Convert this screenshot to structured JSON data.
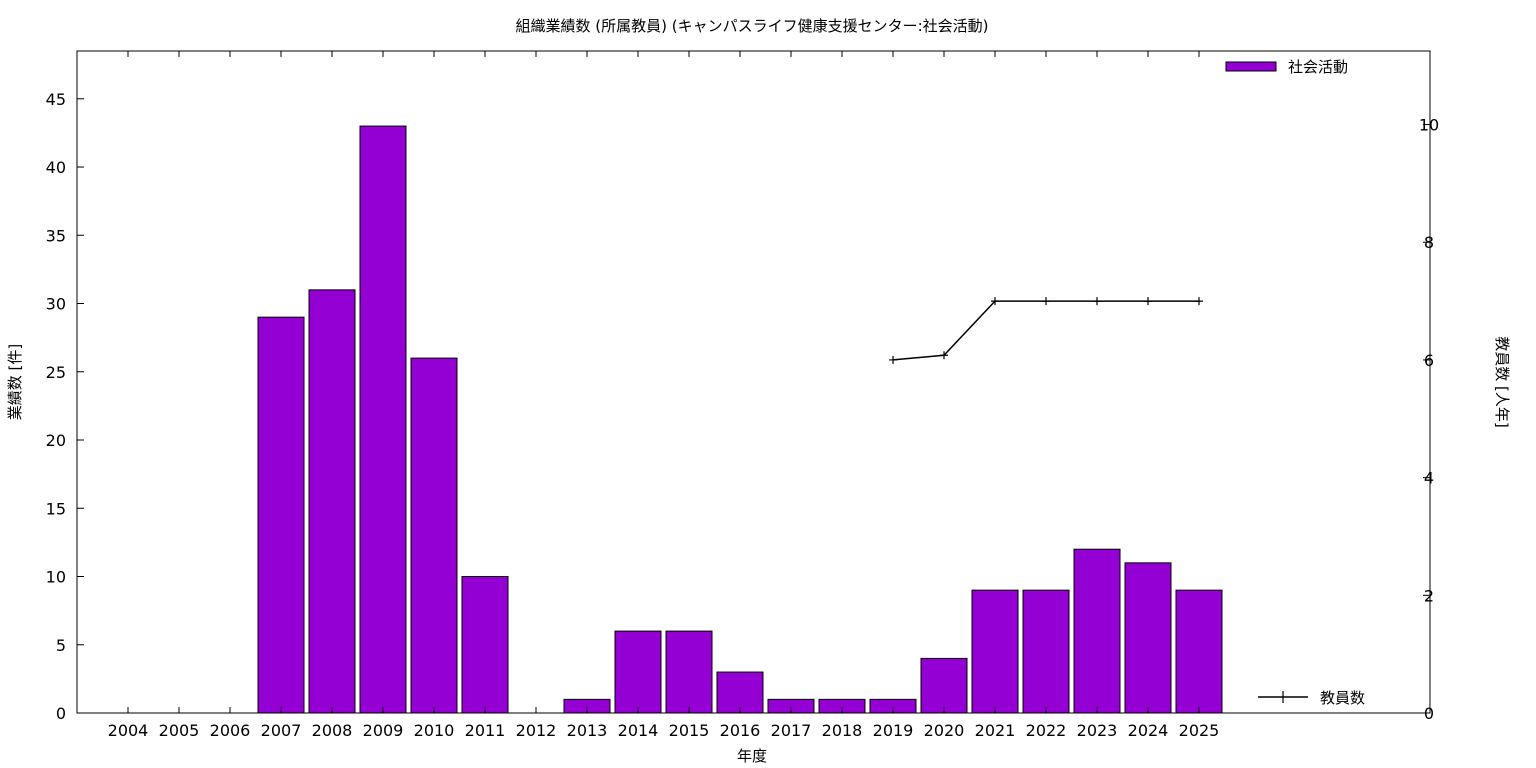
{
  "chart_data": {
    "type": "bar",
    "title": "組織業績数 (所属教員) (キャンパスライフ健康支援センター:社会活動)",
    "xlabel": "年度",
    "ylabel": "業績数 [件]",
    "y2label": "教員数 [人年]",
    "categories": [
      "2004",
      "2005",
      "2006",
      "2007",
      "2008",
      "2009",
      "2010",
      "2011",
      "2012",
      "2013",
      "2014",
      "2015",
      "2016",
      "2017",
      "2018",
      "2019",
      "2020",
      "2021",
      "2022",
      "2023",
      "2024",
      "2025"
    ],
    "series": [
      {
        "name": "社会活動",
        "kind": "bar",
        "axis": "left",
        "color": "#9400d3",
        "values": [
          0,
          0,
          0,
          29,
          31,
          43,
          26,
          10,
          0,
          1,
          6,
          6,
          3,
          1,
          1,
          1,
          4,
          9,
          9,
          12,
          11,
          9
        ]
      },
      {
        "name": "教員数",
        "kind": "line",
        "axis": "right",
        "color": "#000000",
        "values": [
          null,
          null,
          null,
          null,
          null,
          null,
          null,
          null,
          null,
          null,
          null,
          null,
          null,
          null,
          null,
          6,
          6.08,
          7,
          7,
          7,
          7,
          7
        ]
      }
    ],
    "ylim": [
      0,
      48.5
    ],
    "y2lim": [
      0,
      11.25
    ],
    "yticks": [
      0,
      5,
      10,
      15,
      20,
      25,
      30,
      35,
      40,
      45
    ],
    "y2ticks": [
      0,
      2,
      4,
      6,
      8,
      10
    ],
    "legend": "top-right (bars), bottom-right (line)",
    "grid": false
  }
}
